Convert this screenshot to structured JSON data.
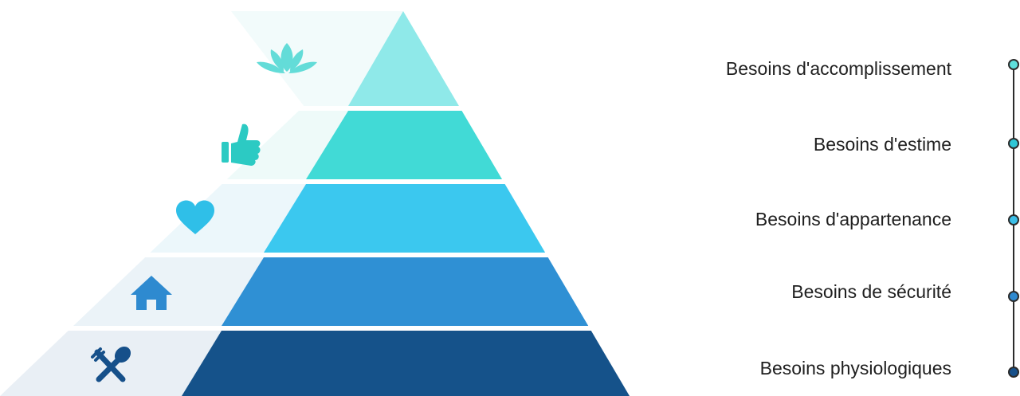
{
  "levels": [
    {
      "label": "Besoins d'accomplissement",
      "icon": "lotus-icon",
      "color": "#8fe9e9",
      "panel": "#f2fbfb",
      "dot": "#5ee0dd"
    },
    {
      "label": "Besoins d'estime",
      "icon": "thumbs-up-icon",
      "color": "#41dad6",
      "panel": "#eefaf9",
      "dot": "#2ec7d6"
    },
    {
      "label": "Besoins d'appartenance",
      "icon": "heart-icon",
      "color": "#3bc8ef",
      "panel": "#ecf7fb",
      "dot": "#3bbfe8"
    },
    {
      "label": "Besoins de sécurité",
      "icon": "home-icon",
      "color": "#2f90d4",
      "panel": "#ebf3f8",
      "dot": "#2e8ad0"
    },
    {
      "label": "Besoins physiologiques",
      "icon": "fork-spoon-icon",
      "color": "#15528a",
      "panel": "#e9eff5",
      "dot": "#16508a"
    }
  ],
  "timeline_color": "#2b2b2b"
}
